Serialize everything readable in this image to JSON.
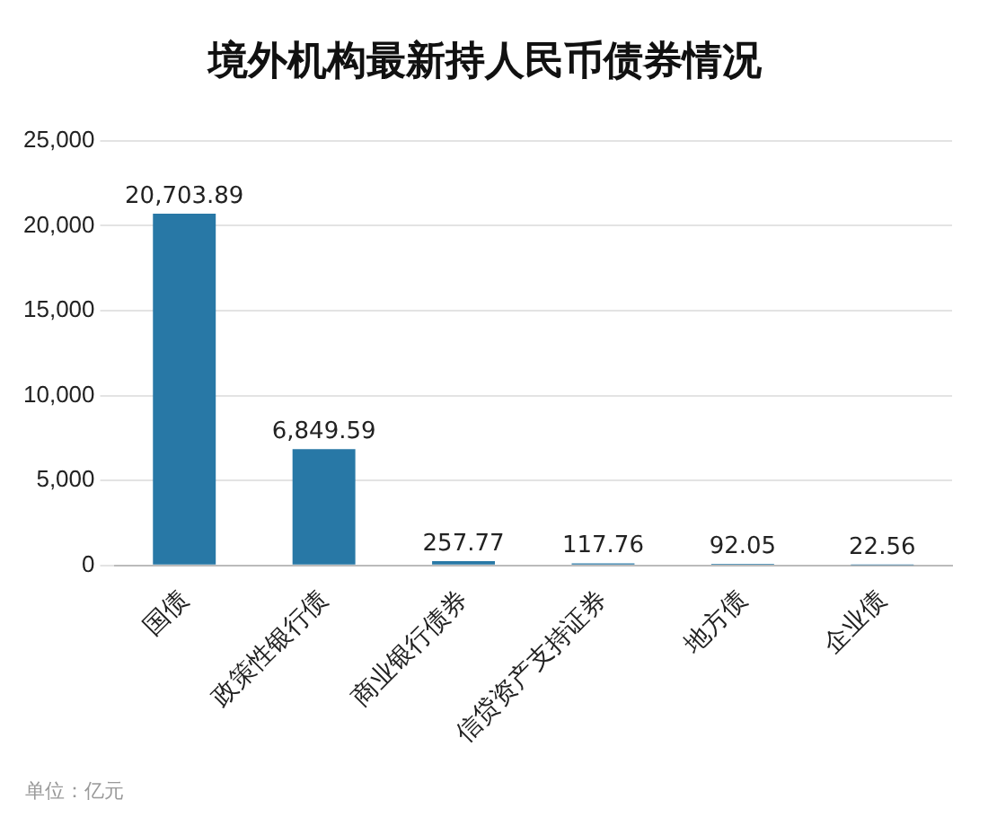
{
  "chart_data": {
    "type": "bar",
    "title": "境外机构最新持人民币债券情况",
    "categories": [
      "国债",
      "政策性银行债",
      "商业银行债券",
      "信贷资产支持证券",
      "地方债",
      "企业债"
    ],
    "values": [
      20703.89,
      6849.59,
      257.77,
      117.76,
      92.05,
      22.56
    ],
    "color": "#2878a6",
    "value_labels": [
      "20,703.89",
      "6,849.59",
      "257.77",
      "117.76",
      "92.05",
      "22.56"
    ],
    "ylim": [
      0,
      25000
    ],
    "yticks": [
      0,
      {
        "value": 5000,
        "label": "5,000"
      },
      {
        "value": 10000,
        "label": "10,000"
      },
      {
        "value": 15000,
        "label": "15,000"
      },
      {
        "value": 20000,
        "label": "20,000"
      },
      {
        "value": 25000,
        "label": "25,000"
      }
    ],
    "grid": "y",
    "legend": false,
    "annotations": [
      "单位：亿元"
    ]
  }
}
